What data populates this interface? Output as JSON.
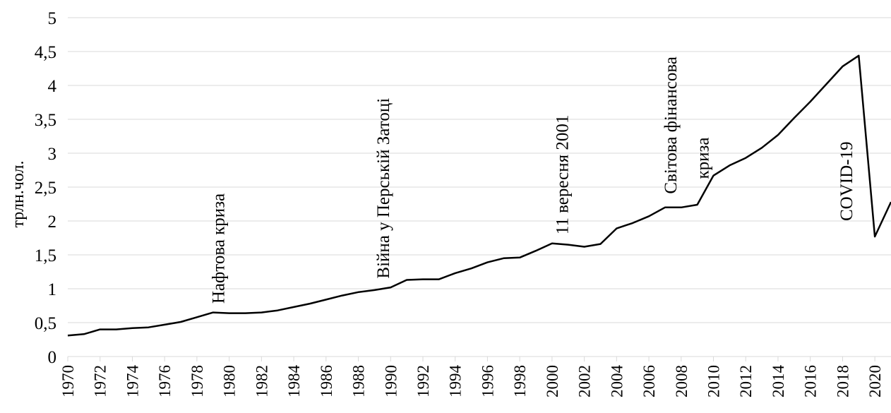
{
  "chart_data": {
    "type": "line",
    "title": "",
    "xlabel": "",
    "ylabel": "трлн.чол.",
    "ylim": [
      0,
      5
    ],
    "yticks": [
      "0",
      "0,5",
      "1",
      "1,5",
      "2",
      "2,5",
      "3",
      "3,5",
      "4",
      "4,5",
      "5"
    ],
    "xticks": [
      "1970",
      "1972",
      "1974",
      "1976",
      "1978",
      "1980",
      "1982",
      "1984",
      "1986",
      "1988",
      "1990",
      "1992",
      "1994",
      "1996",
      "1998",
      "2000",
      "2002",
      "2004",
      "2006",
      "2008",
      "2010",
      "2012",
      "2014",
      "2016",
      "2018",
      "2020"
    ],
    "grid": true,
    "line_color": "#000000",
    "x": [
      1970,
      1971,
      1972,
      1973,
      1974,
      1975,
      1976,
      1977,
      1978,
      1979,
      1980,
      1981,
      1982,
      1983,
      1984,
      1985,
      1986,
      1987,
      1988,
      1989,
      1990,
      1991,
      1992,
      1993,
      1994,
      1995,
      1996,
      1997,
      1998,
      1999,
      2000,
      2001,
      2002,
      2003,
      2004,
      2005,
      2006,
      2007,
      2008,
      2009,
      2010,
      2011,
      2012,
      2013,
      2014,
      2015,
      2016,
      2017,
      2018,
      2019,
      2020,
      2021
    ],
    "series": [
      {
        "values": [
          0.31,
          0.33,
          0.4,
          0.4,
          0.42,
          0.43,
          0.47,
          0.51,
          0.58,
          0.65,
          0.64,
          0.64,
          0.65,
          0.68,
          0.73,
          0.78,
          0.84,
          0.9,
          0.95,
          0.98,
          1.02,
          1.13,
          1.14,
          1.14,
          1.23,
          1.3,
          1.39,
          1.45,
          1.46,
          1.56,
          1.67,
          1.65,
          1.62,
          1.66,
          1.89,
          1.97,
          2.07,
          2.2,
          2.2,
          2.24,
          2.67,
          2.82,
          2.93,
          3.08,
          3.27,
          3.52,
          3.76,
          4.02,
          4.28,
          4.44,
          1.77,
          2.28
        ]
      }
    ],
    "annotations": [
      {
        "x": 1979.3,
        "y": 0.78,
        "text": "Нафтова криза"
      },
      {
        "x": 1989.5,
        "y": 1.15,
        "text": "Війна у Перській Затоці"
      },
      {
        "x": 2000.6,
        "y": 1.8,
        "text": "11 вересня 2001"
      },
      {
        "x": 2007.3,
        "y": 2.4,
        "text": "Світова фінансова"
      },
      {
        "x": 2009.3,
        "y": 2.62,
        "text": "криза"
      },
      {
        "x": 2018.2,
        "y": 2.0,
        "text": "COVID-19"
      }
    ]
  }
}
